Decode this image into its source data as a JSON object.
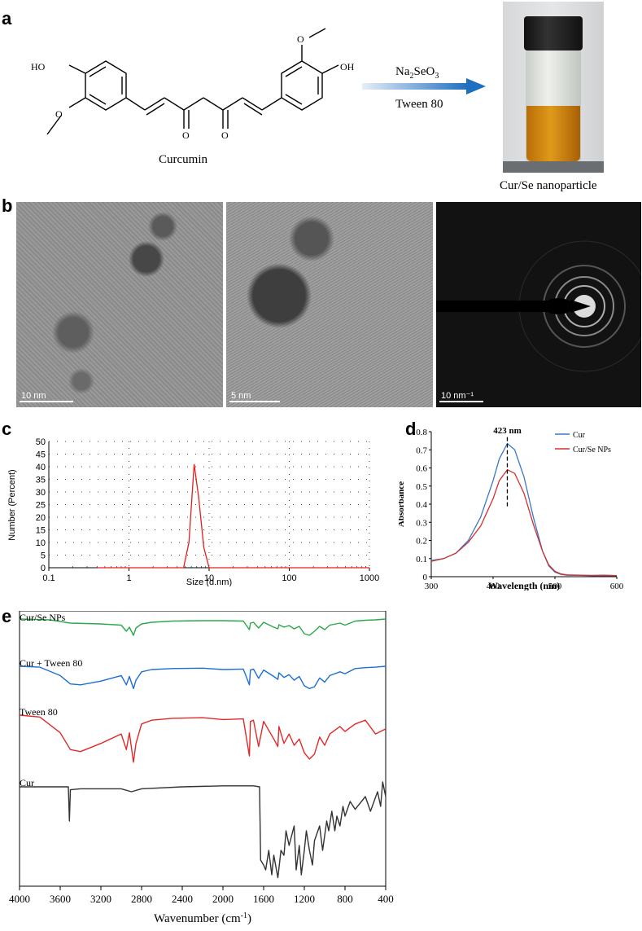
{
  "panel_a": {
    "letter": "a",
    "molecule_name": "Curcumin",
    "oh_left": "HO",
    "oh_right": "OH",
    "o_label": "O",
    "reagent_prefix": "Na",
    "reagent_sub1": "2",
    "reagent_mid": "SeO",
    "reagent_sub2": "3",
    "surfactant": "Tween 80",
    "product_label": "Cur/Se nanoparticle"
  },
  "panel_b": {
    "letter": "b",
    "scales": [
      "10 nm",
      "5 nm",
      "10 nm⁻¹"
    ]
  },
  "panel_c": {
    "letter": "c",
    "ylabel": "Number (Percent)",
    "xlabel": "Size (d.nm)",
    "xticks": [
      "0.1",
      "1",
      "10",
      "100",
      "1000"
    ],
    "yticks": [
      "0",
      "5",
      "10",
      "15",
      "20",
      "25",
      "30",
      "35",
      "40",
      "45",
      "50"
    ]
  },
  "panel_d": {
    "letter": "d",
    "ylabel": "Absorbance",
    "xlabel": "Wavelength  (nm)",
    "annotation": "423 nm",
    "xticks": [
      "300",
      "400",
      "500",
      "600"
    ],
    "yticks": [
      "0",
      "0.1",
      "0.2",
      "0.3",
      "0.4",
      "0.5",
      "0.6",
      "0.7",
      "0.8"
    ],
    "legend": [
      "Cur",
      "Cur/Se NPs"
    ]
  },
  "panel_e": {
    "letter": "e",
    "xlabel_main": "Wavenumber (cm",
    "xlabel_sup": "-1",
    "xlabel_end": ")",
    "xticks": [
      "4000",
      "3600",
      "3200",
      "2800",
      "2400",
      "2000",
      "1600",
      "1200",
      "800",
      "400"
    ],
    "labels": [
      "Cur/Se NPs",
      "Cur + Tween 80",
      "Tween 80",
      "Cur"
    ]
  },
  "chart_data": [
    {
      "type": "line",
      "panel": "c",
      "xlabel": "Size (d.nm)",
      "ylabel": "Number (Percent)",
      "xscale": "log",
      "xlim": [
        0.1,
        1000
      ],
      "ylim": [
        0,
        50
      ],
      "grid": true,
      "series": [
        {
          "color": "#e0201e",
          "x": [
            0.4,
            4.8,
            5.6,
            6.5,
            7.4,
            8.6,
            10.0,
            1000
          ],
          "y": [
            0,
            0,
            10,
            41,
            28,
            8,
            0,
            0
          ]
        }
      ]
    },
    {
      "type": "line",
      "panel": "d",
      "xlabel": "Wavelength  (nm)",
      "ylabel": "Absorbance",
      "xlim": [
        300,
        600
      ],
      "ylim": [
        0,
        0.8
      ],
      "legend_position": "top-right",
      "series": [
        {
          "name": "Cur",
          "color": "#3c78c8",
          "x": [
            300,
            320,
            340,
            360,
            380,
            400,
            410,
            423,
            435,
            450,
            465,
            480,
            490,
            500,
            510,
            520,
            540,
            560,
            580,
            600
          ],
          "y": [
            0.09,
            0.1,
            0.13,
            0.2,
            0.33,
            0.53,
            0.65,
            0.735,
            0.7,
            0.55,
            0.33,
            0.14,
            0.06,
            0.025,
            0.012,
            0.008,
            0.007,
            0.005,
            0.006,
            0.005
          ]
        },
        {
          "name": "Cur/Se NPs",
          "color": "#d03030",
          "x": [
            300,
            320,
            340,
            360,
            380,
            400,
            410,
            423,
            435,
            450,
            465,
            480,
            490,
            500,
            510,
            520,
            540,
            560,
            580,
            600
          ],
          "y": [
            0.085,
            0.1,
            0.13,
            0.19,
            0.28,
            0.43,
            0.53,
            0.59,
            0.57,
            0.46,
            0.29,
            0.14,
            0.065,
            0.03,
            0.015,
            0.01,
            0.008,
            0.007,
            0.008,
            0.006
          ]
        }
      ],
      "annotations": [
        "423 nm"
      ]
    },
    {
      "type": "line",
      "panel": "e",
      "xlabel": "Wavenumber (cm-1)",
      "xlim": [
        4000,
        400
      ],
      "x_reversed": true,
      "series": [
        {
          "name": "Cur/Se NPs",
          "color": "#2ba84a",
          "x": [
            4000,
            3700,
            3500,
            3200,
            3000,
            2950,
            2920,
            2880,
            2855,
            2800,
            2700,
            2500,
            2200,
            2000,
            1800,
            1740,
            1730,
            1700,
            1650,
            1600,
            1500,
            1460,
            1450,
            1400,
            1350,
            1300,
            1250,
            1200,
            1150,
            1100,
            1050,
            1000,
            950,
            850,
            800,
            700,
            600,
            500,
            400
          ],
          "y": [
            1.0,
            0.98,
            0.9,
            0.88,
            0.85,
            0.7,
            0.8,
            0.6,
            0.78,
            0.88,
            0.92,
            0.95,
            0.96,
            0.96,
            0.95,
            0.74,
            0.9,
            0.92,
            0.78,
            0.92,
            0.8,
            0.76,
            0.86,
            0.8,
            0.84,
            0.76,
            0.82,
            0.64,
            0.6,
            0.7,
            0.82,
            0.74,
            0.85,
            0.9,
            0.85,
            0.95,
            0.97,
            0.98,
            1.0
          ]
        },
        {
          "name": "Cur + Tween 80",
          "color": "#1f6fd0",
          "x": [
            4000,
            3800,
            3600,
            3500,
            3400,
            3200,
            3000,
            2950,
            2920,
            2880,
            2855,
            2800,
            2700,
            2500,
            2200,
            2000,
            1800,
            1740,
            1730,
            1700,
            1650,
            1600,
            1500,
            1460,
            1450,
            1400,
            1350,
            1300,
            1250,
            1200,
            1150,
            1100,
            1050,
            1000,
            950,
            850,
            800,
            700,
            600,
            500,
            400
          ],
          "y": [
            1.0,
            0.98,
            0.8,
            0.62,
            0.6,
            0.68,
            0.8,
            0.6,
            0.78,
            0.52,
            0.7,
            0.88,
            0.93,
            0.95,
            0.96,
            0.93,
            0.94,
            0.6,
            0.92,
            0.94,
            0.74,
            0.92,
            0.78,
            0.72,
            0.86,
            0.76,
            0.82,
            0.7,
            0.78,
            0.58,
            0.52,
            0.56,
            0.75,
            0.66,
            0.8,
            0.88,
            0.84,
            0.95,
            0.97,
            0.98,
            1.0
          ]
        },
        {
          "name": "Tween 80",
          "color": "#e02a2a",
          "x": [
            4000,
            3800,
            3600,
            3500,
            3400,
            3200,
            3000,
            2950,
            2920,
            2880,
            2855,
            2800,
            2700,
            2500,
            2200,
            2000,
            1800,
            1740,
            1730,
            1700,
            1650,
            1600,
            1500,
            1460,
            1450,
            1400,
            1350,
            1300,
            1250,
            1200,
            1150,
            1100,
            1050,
            1000,
            950,
            850,
            800,
            700,
            600,
            500,
            400
          ],
          "y": [
            1.0,
            0.97,
            0.72,
            0.45,
            0.42,
            0.55,
            0.7,
            0.45,
            0.72,
            0.25,
            0.55,
            0.86,
            0.92,
            0.95,
            0.96,
            0.93,
            0.94,
            0.35,
            0.9,
            0.92,
            0.5,
            0.9,
            0.62,
            0.5,
            0.82,
            0.55,
            0.7,
            0.52,
            0.62,
            0.4,
            0.3,
            0.38,
            0.65,
            0.52,
            0.7,
            0.82,
            0.74,
            0.86,
            0.92,
            0.7,
            0.78
          ]
        },
        {
          "name": "Cur",
          "color": "#333333",
          "x": [
            4000,
            3600,
            3520,
            3510,
            3500,
            3400,
            3000,
            2900,
            2800,
            2400,
            2000,
            1800,
            1700,
            1640,
            1630,
            1600,
            1580,
            1550,
            1520,
            1500,
            1460,
            1430,
            1400,
            1380,
            1350,
            1300,
            1280,
            1250,
            1230,
            1200,
            1180,
            1150,
            1120,
            1100,
            1050,
            1020,
            980,
            960,
            930,
            900,
            880,
            850,
            820,
            800,
            750,
            700,
            600,
            550,
            480,
            450,
            430,
            400
          ],
          "y": [
            0.95,
            0.95,
            0.95,
            0.6,
            0.92,
            0.93,
            0.93,
            0.9,
            0.93,
            0.95,
            0.96,
            0.96,
            0.96,
            0.95,
            0.2,
            0.15,
            0.1,
            0.3,
            0.05,
            0.25,
            0.02,
            0.3,
            0.25,
            0.5,
            0.35,
            0.55,
            0.1,
            0.35,
            0.05,
            0.3,
            0.5,
            0.3,
            0.15,
            0.4,
            0.55,
            0.3,
            0.6,
            0.5,
            0.7,
            0.5,
            0.65,
            0.55,
            0.75,
            0.65,
            0.8,
            0.72,
            0.85,
            0.7,
            0.9,
            0.75,
            1.0,
            0.85
          ]
        }
      ]
    }
  ]
}
